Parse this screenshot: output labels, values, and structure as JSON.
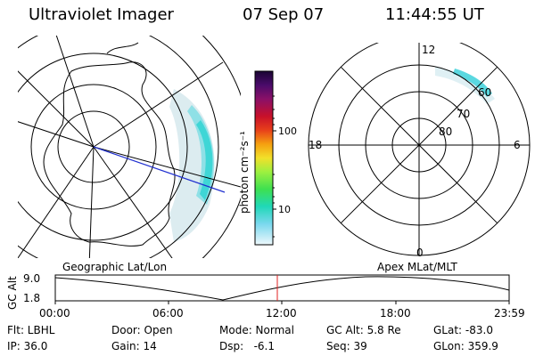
{
  "header": {
    "instrument": "Ultraviolet Imager",
    "date": "07 Sep 07",
    "time": "11:44:55 UT"
  },
  "colorbar": {
    "unit_label": "photon cm⁻²s⁻¹",
    "tick_labels": [
      "100",
      "10"
    ],
    "colors": [
      "#1a0533",
      "#3b0a5e",
      "#6a0f7a",
      "#9a1060",
      "#c0102e",
      "#e0201a",
      "#f05a10",
      "#f5a010",
      "#f7d21a",
      "#e8f03a",
      "#9ef040",
      "#3ee050",
      "#20d8b8",
      "#5ad0ec",
      "#b8e8f4",
      "#eef8fc"
    ]
  },
  "polar_plot": {
    "mlt_labels": [
      "12",
      "18",
      "6",
      "0"
    ],
    "lat_labels": [
      "60",
      "70",
      "80"
    ]
  },
  "timeline": {
    "left_label": "Geographic Lat/Lon",
    "right_label": "Apex MLat/MLT",
    "y_axis_label": "GC Alt",
    "y_ticks": [
      "9.0",
      "1.8"
    ],
    "x_ticks": [
      "00:00",
      "06:00",
      "12:00",
      "18:00",
      "23:59"
    ],
    "current_time_marker": "11:44"
  },
  "info": {
    "filter": "Flt: LBHL",
    "ip": "IP: 36.0",
    "door": "Door: Open",
    "gain": "Gain: 14",
    "mode": "Mode: Normal",
    "dsp": "Dsp:   -6.1",
    "gc_alt": "GC Alt: 5.8 Re",
    "seq": "Seq: 39",
    "glat": "GLat: -83.0",
    "glon": "GLon: 359.9"
  }
}
